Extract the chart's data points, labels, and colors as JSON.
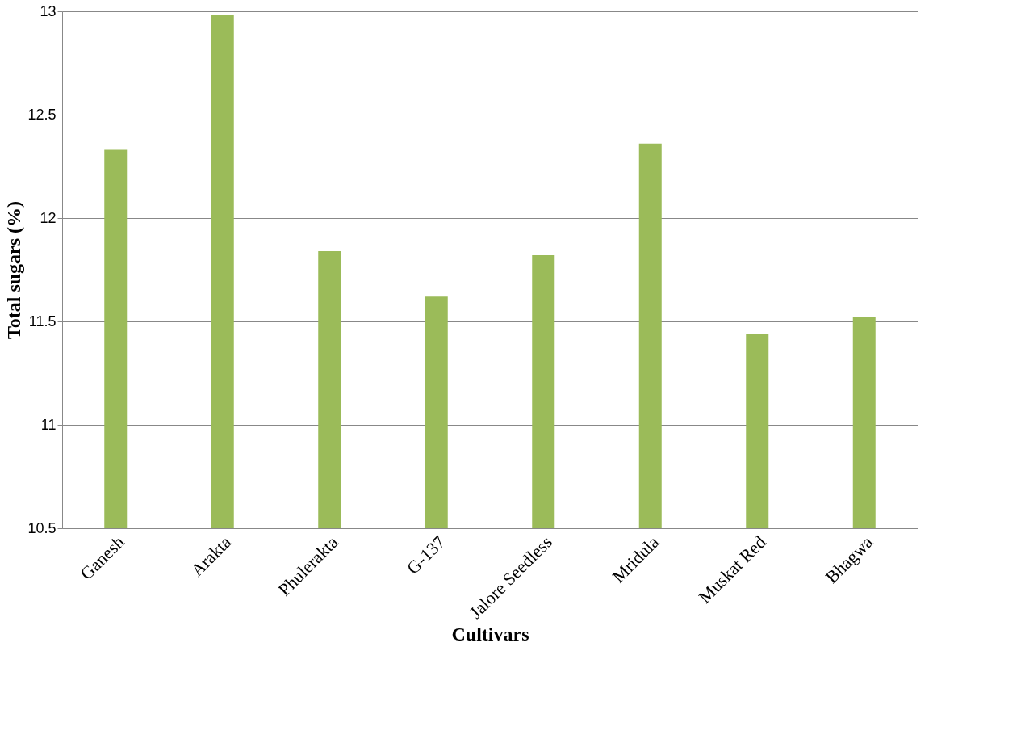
{
  "chart_data": {
    "type": "bar",
    "xlabel": "Cultivars",
    "ylabel": "Total sugars (%)",
    "categories": [
      "Ganesh",
      "Arakta",
      "Phulerakta",
      "G-137",
      "Jalore Seedless",
      "Mridula",
      "Muskat Red",
      "Bhagwa"
    ],
    "values": [
      12.33,
      12.98,
      11.84,
      11.62,
      11.82,
      12.36,
      11.44,
      11.52
    ],
    "color": "#9bbb59",
    "ylim": [
      10.5,
      13
    ],
    "yticks": [
      10.5,
      11,
      11.5,
      12,
      12.5,
      13
    ],
    "grid": "y"
  }
}
